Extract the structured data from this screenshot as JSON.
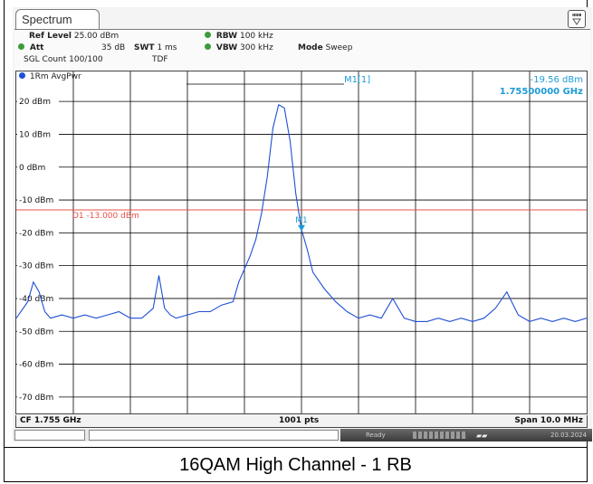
{
  "tab": {
    "label": "Spectrum"
  },
  "settings_icon": "settings-panel-icon",
  "header": {
    "ref_level_label": "Ref Level",
    "ref_level_value": "25.00 dBm",
    "att_label": "Att",
    "att_value": "35 dB",
    "swt_label": "SWT",
    "swt_value": "1 ms",
    "rbw_label": "RBW",
    "rbw_value": "100 kHz",
    "vbw_label": "VBW",
    "vbw_value": "300 kHz",
    "mode_label": "Mode",
    "mode_value": "Sweep",
    "sgl_count": "SGL Count 100/100",
    "tdf": "TDF"
  },
  "trace": {
    "label": "1Rm AvgPwr",
    "color": "#1f4fd6"
  },
  "marker": {
    "name": "M1[1]",
    "level": "-19.56 dBm",
    "frequency": "1.75500000 GHz",
    "point_label": "M1",
    "color": "#1e9ad6"
  },
  "display_line": {
    "label": "D1 -13.000 dBm",
    "level": -13,
    "color": "#e8504a"
  },
  "footer": {
    "cf": "CF 1.755 GHz",
    "points": "1001 pts",
    "span": "Span 10.0 MHz"
  },
  "status": {
    "left_text": "Ready",
    "date": "20.03.2024"
  },
  "caption": "16QAM High Channel - 1 RB",
  "chart_data": {
    "type": "line",
    "xlim": [
      1750,
      1760
    ],
    "ylim": [
      -75,
      25
    ],
    "y_ticks": [
      {
        "value": 20,
        "label": "20 dBm"
      },
      {
        "value": 10,
        "label": "10 dBm"
      },
      {
        "value": 0,
        "label": "0 dBm"
      },
      {
        "value": -10,
        "label": "-10 dBm"
      },
      {
        "value": -20,
        "label": "-20 dBm"
      },
      {
        "value": -30,
        "label": "-30 dBm"
      },
      {
        "value": -40,
        "label": "-40 dBm"
      },
      {
        "value": -50,
        "label": "-50 dBm"
      },
      {
        "value": -60,
        "label": "-60 dBm"
      },
      {
        "value": -70,
        "label": "-70 dBm"
      }
    ],
    "grid": true,
    "series": [
      {
        "x": [
          1750.0,
          1750.2,
          1750.3,
          1750.4,
          1750.5,
          1750.6,
          1750.8,
          1751.0,
          1751.2,
          1751.4,
          1751.6,
          1751.8,
          1752.0,
          1752.2,
          1752.4,
          1752.5,
          1752.6,
          1752.7,
          1752.8,
          1753.0,
          1753.2,
          1753.4,
          1753.6,
          1753.8,
          1753.9,
          1754.0,
          1754.1,
          1754.2,
          1754.3,
          1754.4,
          1754.5,
          1754.6,
          1754.7,
          1754.8,
          1754.9,
          1755.0,
          1755.1,
          1755.2,
          1755.4,
          1755.6,
          1755.8,
          1756.0,
          1756.2,
          1756.4,
          1756.6,
          1756.8,
          1757.0,
          1757.2,
          1757.4,
          1757.6,
          1757.8,
          1758.0,
          1758.2,
          1758.4,
          1758.6,
          1758.8,
          1759.0,
          1759.2,
          1759.4,
          1759.6,
          1759.8,
          1760.0
        ],
        "y": [
          -46,
          -41,
          -35,
          -38,
          -44,
          -46,
          -45,
          -46,
          -45,
          -46,
          -45,
          -44,
          -46,
          -46,
          -43,
          -33,
          -43,
          -45,
          -46,
          -45,
          -44,
          -44,
          -42,
          -41,
          -35,
          -31,
          -27,
          -22,
          -14,
          -3,
          12,
          19,
          18,
          8,
          -8,
          -19,
          -25,
          -32,
          -37,
          -41,
          -44,
          -46,
          -45,
          -46,
          -40,
          -46,
          -47,
          -47,
          -46,
          -47,
          -46,
          -47,
          -46,
          -43,
          -38,
          -45,
          -47,
          -46,
          -47,
          -46,
          -47,
          -46
        ]
      }
    ]
  }
}
